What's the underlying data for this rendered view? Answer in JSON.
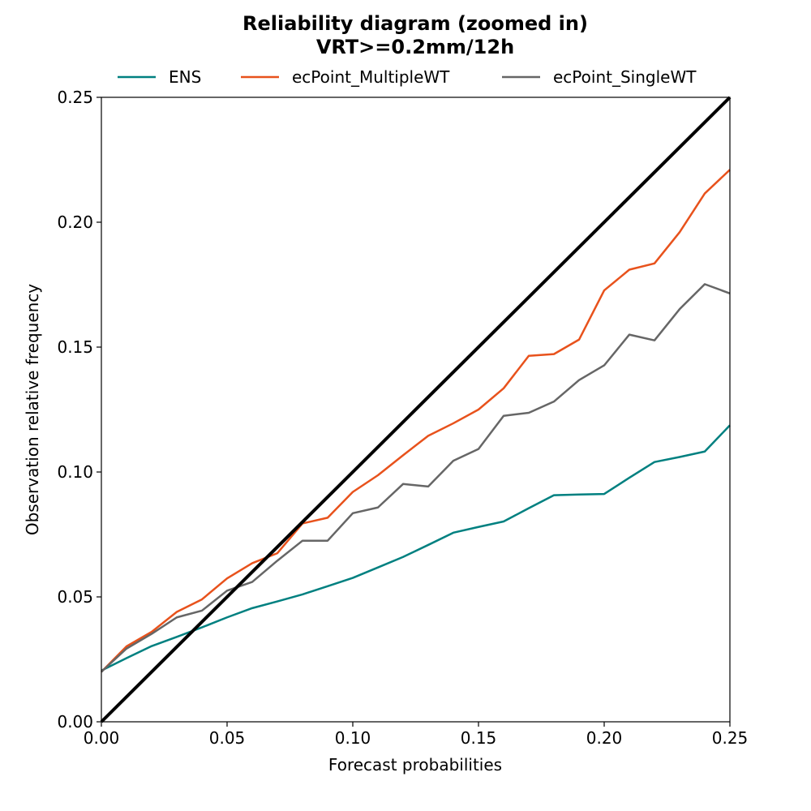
{
  "chart_data": {
    "type": "line",
    "title": "Reliability diagram (zoomed in)",
    "subtitle": "VRT>=0.2mm/12h",
    "xlabel": "Forecast probabilities",
    "ylabel": "Observation relative frequency",
    "xlim": [
      0,
      0.25
    ],
    "ylim": [
      0,
      0.25
    ],
    "xticks": [
      "0.00",
      "0.05",
      "0.10",
      "0.15",
      "0.20",
      "0.25"
    ],
    "yticks": [
      "0.00",
      "0.05",
      "0.10",
      "0.15",
      "0.20",
      "0.25"
    ],
    "grid": false,
    "legend_position": "top",
    "x": [
      0.0,
      0.01,
      0.02,
      0.03,
      0.04,
      0.05,
      0.06,
      0.07,
      0.08,
      0.09,
      0.1,
      0.11,
      0.12,
      0.13,
      0.14,
      0.15,
      0.16,
      0.17,
      0.18,
      0.19,
      0.2,
      0.21,
      0.22,
      0.23,
      0.24,
      0.25
    ],
    "series": [
      {
        "name": "ENS",
        "color": "#008080",
        "values": [
          0.0205,
          0.0255,
          0.0303,
          0.034,
          0.0378,
          0.0418,
          0.0455,
          0.0482,
          0.051,
          0.0543,
          0.0576,
          0.0618,
          0.066,
          0.0708,
          0.0757,
          0.078,
          0.0802,
          0.0855,
          0.0907,
          0.091,
          0.0912,
          0.0977,
          0.104,
          0.106,
          0.1082,
          0.1187
        ]
      },
      {
        "name": "ecPoint_MultipleWT",
        "color": "#e8521c",
        "values": [
          0.02,
          0.0302,
          0.036,
          0.044,
          0.049,
          0.0574,
          0.0635,
          0.0675,
          0.0794,
          0.0817,
          0.092,
          0.0987,
          0.1067,
          0.1145,
          0.1195,
          0.125,
          0.1335,
          0.1465,
          0.1472,
          0.153,
          0.1727,
          0.181,
          0.1835,
          0.196,
          0.2115,
          0.221
        ]
      },
      {
        "name": "ecPoint_SingleWT",
        "color": "#666666",
        "values": [
          0.02,
          0.0293,
          0.0352,
          0.0418,
          0.0445,
          0.0525,
          0.056,
          0.0645,
          0.0725,
          0.0725,
          0.0835,
          0.0858,
          0.0952,
          0.0942,
          0.1045,
          0.1092,
          0.1225,
          0.1237,
          0.1282,
          0.1368,
          0.1427,
          0.155,
          0.1527,
          0.1652,
          0.1752,
          0.1715
        ]
      }
    ],
    "reference_line": {
      "from": [
        0,
        0
      ],
      "to": [
        0.25,
        0.25
      ],
      "color": "#000000"
    }
  }
}
